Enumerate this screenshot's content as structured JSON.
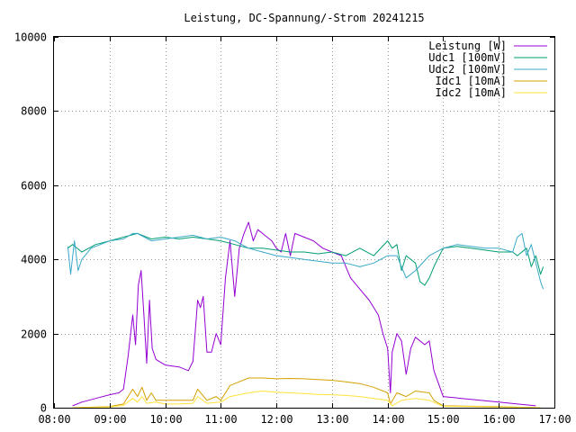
{
  "chart_data": {
    "type": "line",
    "title": "Leistung, DC-Spannung/-Strom 20241215",
    "xlabel": "",
    "ylabel": "",
    "xlim": [
      "08:00",
      "17:00"
    ],
    "ylim": [
      0,
      10000
    ],
    "x_ticks": [
      "08:00",
      "09:00",
      "10:00",
      "11:00",
      "12:00",
      "13:00",
      "14:00",
      "15:00",
      "16:00",
      "17:00"
    ],
    "y_ticks": [
      0,
      2000,
      4000,
      6000,
      8000,
      10000
    ],
    "grid": true,
    "legend_position": "top-right",
    "colors": {
      "leistung": "#9400d3",
      "udc1": "#009e73",
      "udc2": "#3aa8c8",
      "idc1": "#d4a000",
      "idc2": "#ffe23a"
    },
    "series": [
      {
        "key": "leistung",
        "name": "Leistung [W]",
        "color": "#9400d3",
        "points": [
          [
            "08:20",
            50
          ],
          [
            "08:30",
            150
          ],
          [
            "08:45",
            250
          ],
          [
            "09:00",
            350
          ],
          [
            "09:10",
            400
          ],
          [
            "09:15",
            500
          ],
          [
            "09:20",
            1400
          ],
          [
            "09:25",
            2500
          ],
          [
            "09:28",
            1700
          ],
          [
            "09:31",
            3300
          ],
          [
            "09:34",
            3700
          ],
          [
            "09:37",
            2500
          ],
          [
            "09:40",
            1200
          ],
          [
            "09:43",
            2900
          ],
          [
            "09:46",
            1600
          ],
          [
            "09:50",
            1300
          ],
          [
            "10:00",
            1150
          ],
          [
            "10:15",
            1100
          ],
          [
            "10:25",
            1000
          ],
          [
            "10:30",
            1250
          ],
          [
            "10:35",
            2900
          ],
          [
            "10:38",
            2700
          ],
          [
            "10:41",
            3000
          ],
          [
            "10:45",
            1500
          ],
          [
            "10:50",
            1500
          ],
          [
            "10:55",
            2000
          ],
          [
            "11:00",
            1700
          ],
          [
            "11:05",
            3500
          ],
          [
            "11:10",
            4500
          ],
          [
            "11:15",
            3000
          ],
          [
            "11:20",
            4300
          ],
          [
            "11:25",
            4700
          ],
          [
            "11:30",
            5000
          ],
          [
            "11:35",
            4500
          ],
          [
            "11:40",
            4800
          ],
          [
            "11:45",
            4700
          ],
          [
            "11:50",
            4600
          ],
          [
            "11:55",
            4500
          ],
          [
            "12:00",
            4300
          ],
          [
            "12:05",
            4200
          ],
          [
            "12:10",
            4700
          ],
          [
            "12:15",
            4100
          ],
          [
            "12:20",
            4700
          ],
          [
            "12:30",
            4600
          ],
          [
            "12:40",
            4500
          ],
          [
            "12:50",
            4300
          ],
          [
            "13:00",
            4200
          ],
          [
            "13:10",
            4100
          ],
          [
            "13:15",
            3800
          ],
          [
            "13:20",
            3500
          ],
          [
            "13:30",
            3200
          ],
          [
            "13:40",
            2900
          ],
          [
            "13:50",
            2500
          ],
          [
            "13:55",
            2000
          ],
          [
            "14:00",
            1600
          ],
          [
            "14:03",
            400
          ],
          [
            "14:05",
            1500
          ],
          [
            "14:10",
            2000
          ],
          [
            "14:15",
            1800
          ],
          [
            "14:20",
            900
          ],
          [
            "14:25",
            1600
          ],
          [
            "14:30",
            1900
          ],
          [
            "14:40",
            1700
          ],
          [
            "14:45",
            1800
          ],
          [
            "14:50",
            1000
          ],
          [
            "15:00",
            300
          ],
          [
            "15:20",
            250
          ],
          [
            "15:40",
            200
          ],
          [
            "16:00",
            150
          ],
          [
            "16:20",
            100
          ],
          [
            "16:40",
            50
          ]
        ]
      },
      {
        "key": "udc1",
        "name": "Udc1 [100mV]",
        "color": "#009e73",
        "points": [
          [
            "08:15",
            4300
          ],
          [
            "08:20",
            4400
          ],
          [
            "08:30",
            4200
          ],
          [
            "08:45",
            4400
          ],
          [
            "09:00",
            4500
          ],
          [
            "09:15",
            4600
          ],
          [
            "09:30",
            4700
          ],
          [
            "09:45",
            4550
          ],
          [
            "10:00",
            4600
          ],
          [
            "10:15",
            4550
          ],
          [
            "10:30",
            4600
          ],
          [
            "10:45",
            4550
          ],
          [
            "11:00",
            4500
          ],
          [
            "11:15",
            4400
          ],
          [
            "11:30",
            4300
          ],
          [
            "11:45",
            4300
          ],
          [
            "12:00",
            4250
          ],
          [
            "12:15",
            4200
          ],
          [
            "12:30",
            4200
          ],
          [
            "12:45",
            4150
          ],
          [
            "13:00",
            4200
          ],
          [
            "13:15",
            4100
          ],
          [
            "13:30",
            4300
          ],
          [
            "13:45",
            4100
          ],
          [
            "14:00",
            4500
          ],
          [
            "14:05",
            4300
          ],
          [
            "14:10",
            4400
          ],
          [
            "14:15",
            3700
          ],
          [
            "14:20",
            4100
          ],
          [
            "14:25",
            4000
          ],
          [
            "14:30",
            3900
          ],
          [
            "14:35",
            3400
          ],
          [
            "14:40",
            3300
          ],
          [
            "14:45",
            3500
          ],
          [
            "14:50",
            3800
          ],
          [
            "15:00",
            4300
          ],
          [
            "15:15",
            4350
          ],
          [
            "15:30",
            4300
          ],
          [
            "15:45",
            4250
          ],
          [
            "16:00",
            4200
          ],
          [
            "16:15",
            4200
          ],
          [
            "16:20",
            4100
          ],
          [
            "16:30",
            4300
          ],
          [
            "16:35",
            3800
          ],
          [
            "16:40",
            4100
          ],
          [
            "16:45",
            3600
          ],
          [
            "16:48",
            3800
          ]
        ]
      },
      {
        "key": "udc2",
        "name": "Udc2 [100mV]",
        "color": "#3aa8c8",
        "points": [
          [
            "08:15",
            4350
          ],
          [
            "08:18",
            3600
          ],
          [
            "08:22",
            4500
          ],
          [
            "08:26",
            3700
          ],
          [
            "08:30",
            4000
          ],
          [
            "08:40",
            4300
          ],
          [
            "08:50",
            4400
          ],
          [
            "09:00",
            4500
          ],
          [
            "09:15",
            4550
          ],
          [
            "09:25",
            4700
          ],
          [
            "09:30",
            4700
          ],
          [
            "09:45",
            4500
          ],
          [
            "10:00",
            4550
          ],
          [
            "10:15",
            4600
          ],
          [
            "10:30",
            4650
          ],
          [
            "10:45",
            4550
          ],
          [
            "11:00",
            4600
          ],
          [
            "11:15",
            4500
          ],
          [
            "11:30",
            4300
          ],
          [
            "11:45",
            4200
          ],
          [
            "12:00",
            4100
          ],
          [
            "12:15",
            4050
          ],
          [
            "12:30",
            4000
          ],
          [
            "12:45",
            3950
          ],
          [
            "13:00",
            3900
          ],
          [
            "13:15",
            3900
          ],
          [
            "13:30",
            3800
          ],
          [
            "13:45",
            3900
          ],
          [
            "14:00",
            4100
          ],
          [
            "14:10",
            4100
          ],
          [
            "14:20",
            3500
          ],
          [
            "14:30",
            3700
          ],
          [
            "14:45",
            4100
          ],
          [
            "15:00",
            4300
          ],
          [
            "15:15",
            4400
          ],
          [
            "15:30",
            4350
          ],
          [
            "15:45",
            4300
          ],
          [
            "16:00",
            4300
          ],
          [
            "16:15",
            4200
          ],
          [
            "16:20",
            4600
          ],
          [
            "16:25",
            4700
          ],
          [
            "16:30",
            4100
          ],
          [
            "16:35",
            4400
          ],
          [
            "16:40",
            3900
          ],
          [
            "16:45",
            3400
          ],
          [
            "16:48",
            3200
          ]
        ]
      },
      {
        "key": "idc1",
        "name": "Idc1 [10mA]",
        "color": "#d4a000",
        "points": [
          [
            "08:20",
            0
          ],
          [
            "09:00",
            30
          ],
          [
            "09:15",
            100
          ],
          [
            "09:20",
            300
          ],
          [
            "09:25",
            500
          ],
          [
            "09:30",
            300
          ],
          [
            "09:35",
            550
          ],
          [
            "09:40",
            200
          ],
          [
            "09:45",
            400
          ],
          [
            "09:50",
            200
          ],
          [
            "10:00",
            200
          ],
          [
            "10:15",
            200
          ],
          [
            "10:30",
            200
          ],
          [
            "10:35",
            500
          ],
          [
            "10:40",
            350
          ],
          [
            "10:45",
            200
          ],
          [
            "10:55",
            300
          ],
          [
            "11:00",
            200
          ],
          [
            "11:10",
            600
          ],
          [
            "11:20",
            700
          ],
          [
            "11:30",
            800
          ],
          [
            "11:45",
            800
          ],
          [
            "12:00",
            780
          ],
          [
            "12:15",
            790
          ],
          [
            "12:30",
            780
          ],
          [
            "12:45",
            760
          ],
          [
            "13:00",
            740
          ],
          [
            "13:15",
            700
          ],
          [
            "13:30",
            650
          ],
          [
            "13:45",
            550
          ],
          [
            "14:00",
            400
          ],
          [
            "14:03",
            100
          ],
          [
            "14:10",
            400
          ],
          [
            "14:20",
            300
          ],
          [
            "14:30",
            450
          ],
          [
            "14:45",
            400
          ],
          [
            "14:50",
            200
          ],
          [
            "15:00",
            50
          ],
          [
            "15:30",
            40
          ],
          [
            "16:00",
            30
          ],
          [
            "16:30",
            10
          ],
          [
            "16:45",
            0
          ]
        ]
      },
      {
        "key": "idc2",
        "name": "Idc2 [10mA]",
        "color": "#ffe23a",
        "points": [
          [
            "08:20",
            0
          ],
          [
            "09:00",
            20
          ],
          [
            "09:15",
            60
          ],
          [
            "09:25",
            250
          ],
          [
            "09:30",
            150
          ],
          [
            "09:35",
            300
          ],
          [
            "09:40",
            120
          ],
          [
            "09:50",
            150
          ],
          [
            "10:00",
            100
          ],
          [
            "10:15",
            100
          ],
          [
            "10:30",
            120
          ],
          [
            "10:35",
            300
          ],
          [
            "10:45",
            120
          ],
          [
            "11:00",
            150
          ],
          [
            "11:10",
            300
          ],
          [
            "11:20",
            350
          ],
          [
            "11:30",
            400
          ],
          [
            "11:45",
            450
          ],
          [
            "12:00",
            420
          ],
          [
            "12:15",
            400
          ],
          [
            "12:30",
            380
          ],
          [
            "12:45",
            360
          ],
          [
            "13:00",
            350
          ],
          [
            "13:15",
            330
          ],
          [
            "13:30",
            300
          ],
          [
            "13:45",
            250
          ],
          [
            "14:00",
            200
          ],
          [
            "14:05",
            50
          ],
          [
            "14:15",
            200
          ],
          [
            "14:30",
            250
          ],
          [
            "14:45",
            200
          ],
          [
            "15:00",
            40
          ],
          [
            "15:30",
            30
          ],
          [
            "16:00",
            20
          ],
          [
            "16:30",
            10
          ],
          [
            "16:45",
            0
          ]
        ]
      }
    ]
  }
}
